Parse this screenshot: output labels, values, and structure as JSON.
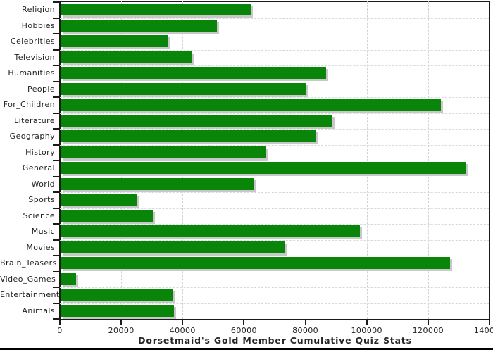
{
  "chart_data": {
    "type": "bar",
    "orientation": "horizontal",
    "title": "Dorsetmaid's Gold Member Cumulative Quiz Stats",
    "categories": [
      "Religion",
      "Hobbies",
      "Celebrities",
      "Television",
      "Humanities",
      "People",
      "For_Children",
      "Literature",
      "Geography",
      "History",
      "General",
      "World",
      "Sports",
      "Science",
      "Music",
      "Movies",
      "Brain_Teasers",
      "Video_Games",
      "Entertainment",
      "Animals"
    ],
    "values": [
      62000,
      51000,
      35000,
      43000,
      86500,
      80000,
      124000,
      88500,
      83000,
      67000,
      132000,
      63000,
      25000,
      30000,
      97500,
      73000,
      127000,
      5000,
      36500,
      37000
    ],
    "xlabel": "",
    "ylabel": "",
    "xlim": [
      0,
      140000
    ],
    "x_tick_labels": [
      "0",
      "20000",
      "40000",
      "60000",
      "80000",
      "100000",
      "120000",
      "140000"
    ],
    "grid": "dashed vertical and horizontal",
    "legend": "none",
    "colors": {
      "bar": "#098609",
      "bar_shadow": "#c8c8c8",
      "axis": "#1a1a1a",
      "grid_vertical": "#c9d2da",
      "grid_horizontal": "#d6dade",
      "background": "#ffffff"
    }
  }
}
